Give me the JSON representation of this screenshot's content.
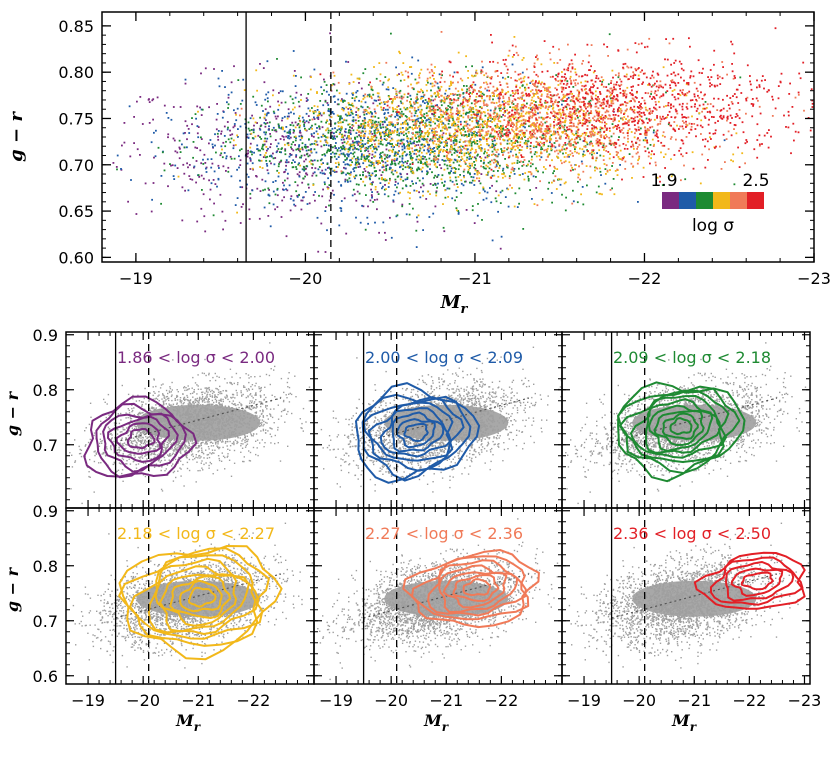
{
  "colors": {
    "bins": [
      "#7a2a80",
      "#1f5ba8",
      "#1e8a32",
      "#f2b81a",
      "#f07a58",
      "#e21f26"
    ],
    "gray": "#9e9e9e"
  },
  "chart_data": [
    {
      "type": "scatter",
      "panel": "top",
      "xlabel_main": "M",
      "xlabel_sub": "r",
      "ylabel": "g − r",
      "xlim": [
        -18.8,
        -23.0
      ],
      "ylim": [
        0.595,
        0.865
      ],
      "x_ticks": [
        -19,
        -20,
        -21,
        -22,
        -23
      ],
      "x_tick_labels": [
        "−19",
        "−20",
        "−21",
        "−22",
        "−23"
      ],
      "y_ticks": [
        0.6,
        0.65,
        0.7,
        0.75,
        0.8,
        0.85
      ],
      "y_tick_labels": [
        "0.60",
        "0.65",
        "0.70",
        "0.75",
        "0.80",
        "0.85"
      ],
      "vlines": [
        {
          "x": -19.65,
          "style": "solid"
        },
        {
          "x": -20.15,
          "style": "dashed"
        }
      ],
      "colorbar": {
        "min_label": "1.9",
        "max_label": "2.5",
        "label": "log σ",
        "placement": "lower-right"
      },
      "series": [
        {
          "bin": "1.86–2.00",
          "center": [
            -19.9,
            0.712
          ],
          "spread": [
            0.55,
            0.04
          ],
          "count": 500
        },
        {
          "bin": "2.00–2.09",
          "center": [
            -20.4,
            0.722
          ],
          "spread": [
            0.55,
            0.035
          ],
          "count": 900
        },
        {
          "bin": "2.09–2.18",
          "center": [
            -20.7,
            0.728
          ],
          "spread": [
            0.55,
            0.032
          ],
          "count": 1200
        },
        {
          "bin": "2.18–2.27",
          "center": [
            -21.0,
            0.74
          ],
          "spread": [
            0.55,
            0.03
          ],
          "count": 1400
        },
        {
          "bin": "2.27–2.36",
          "center": [
            -21.4,
            0.752
          ],
          "spread": [
            0.5,
            0.028
          ],
          "count": 1100
        },
        {
          "bin": "2.36–2.50",
          "center": [
            -21.9,
            0.765
          ],
          "spread": [
            0.55,
            0.028
          ],
          "count": 900
        }
      ]
    },
    {
      "type": "scatter",
      "panel": "grid",
      "xlabel_main": "M",
      "xlabel_sub": "r",
      "ylabel": "g − r",
      "xlim": [
        -18.6,
        -23.1
      ],
      "ylim": [
        0.585,
        0.905
      ],
      "x_ticks_cols": [
        {
          "ticks": [
            -19,
            -20,
            -21,
            -22
          ],
          "labels": [
            "−19",
            "−20",
            "−21",
            "−22"
          ]
        },
        {
          "ticks": [
            -19,
            -20,
            -21,
            -22
          ],
          "labels": [
            "−19",
            "−20",
            "−21",
            "−22"
          ]
        },
        {
          "ticks": [
            -19,
            -20,
            -21,
            -22,
            -23
          ],
          "labels": [
            "−19",
            "−20",
            "−21",
            "−22",
            "−23"
          ]
        }
      ],
      "y_ticks_top_row": [
        0.7,
        0.8,
        0.9
      ],
      "y_tick_labels_top_row": [
        "0.7",
        "0.8",
        "0.9"
      ],
      "y_ticks_bottom_row": [
        0.6,
        0.7,
        0.8,
        0.9
      ],
      "y_tick_labels_bottom_row": [
        "0.6",
        "0.7",
        "0.8",
        "0.9"
      ],
      "vlines": [
        {
          "x": -19.5,
          "style": "solid"
        },
        {
          "x": -20.1,
          "style": "dashed"
        }
      ],
      "trend": {
        "x": [
          -19.5,
          -22.5
        ],
        "y": [
          0.705,
          0.785
        ],
        "style": "dotted"
      },
      "background": {
        "center": [
          -20.8,
          0.735
        ],
        "spread": [
          0.75,
          0.035
        ],
        "count": 2600
      },
      "panels": [
        {
          "label": "1.86 < log σ < 2.00",
          "color_index": 0,
          "center": [
            -19.9,
            0.708
          ],
          "radii": [
            0.95,
            0.07
          ],
          "levels": 6
        },
        {
          "label": "2.00 < log σ < 2.09",
          "color_index": 1,
          "center": [
            -20.4,
            0.72
          ],
          "radii": [
            1.1,
            0.08
          ],
          "levels": 8
        },
        {
          "label": "2.09 < log σ < 2.18",
          "color_index": 2,
          "center": [
            -20.7,
            0.73
          ],
          "radii": [
            1.15,
            0.08
          ],
          "levels": 9
        },
        {
          "label": "2.18 < log σ < 2.27",
          "color_index": 3,
          "center": [
            -21.0,
            0.74
          ],
          "radii": [
            1.4,
            0.095
          ],
          "levels": 9
        },
        {
          "label": "2.27 < log σ < 2.36",
          "color_index": 4,
          "center": [
            -21.5,
            0.757
          ],
          "radii": [
            1.15,
            0.065
          ],
          "levels": 7
        },
        {
          "label": "2.36 < log σ < 2.50",
          "color_index": 5,
          "center": [
            -22.1,
            0.77
          ],
          "radii": [
            0.95,
            0.05
          ],
          "levels": 5
        }
      ]
    }
  ]
}
